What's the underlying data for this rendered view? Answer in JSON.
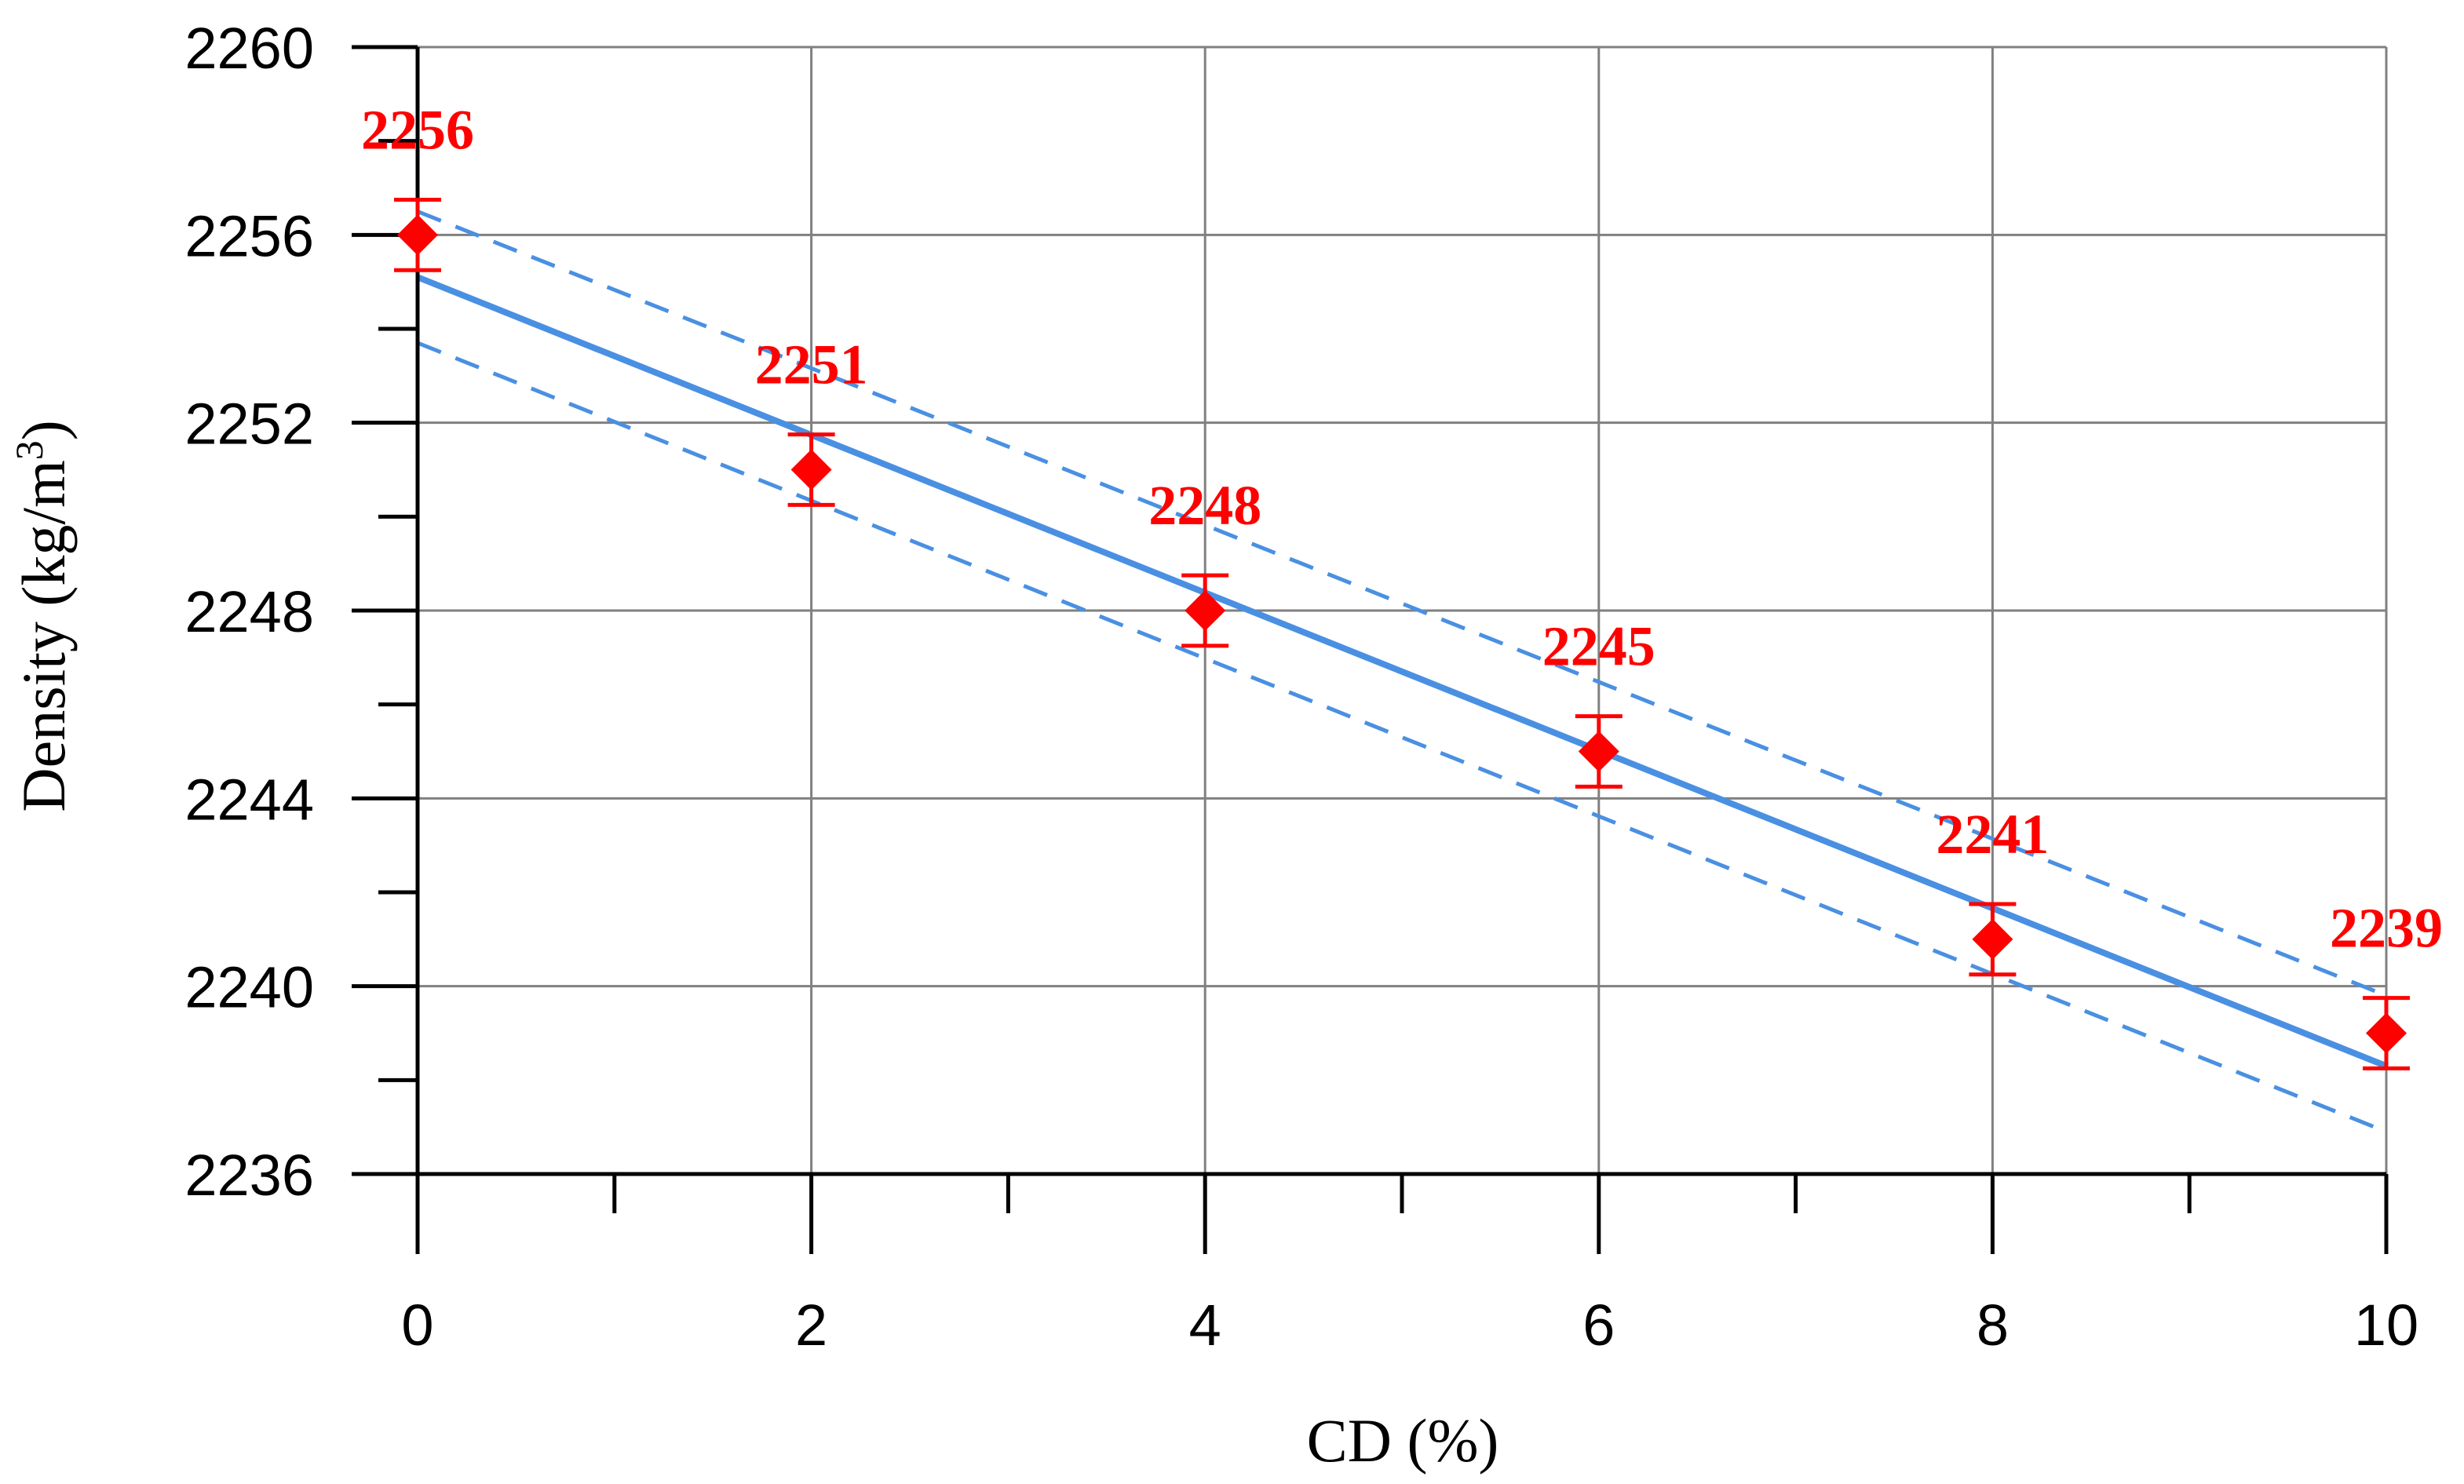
{
  "chart_data": {
    "type": "scatter",
    "xlabel": "CD (%)",
    "ylabel_prefix": "Density (kg/m",
    "ylabel_sup": "3",
    "ylabel_suffix": ")",
    "xlim": [
      0,
      10
    ],
    "ylim": [
      2236,
      2260
    ],
    "x_ticks": [
      0,
      2,
      4,
      6,
      8,
      10
    ],
    "x_minor_ticks": [
      1,
      3,
      5,
      7,
      9
    ],
    "y_ticks": [
      2236,
      2240,
      2244,
      2248,
      2252,
      2256,
      2260
    ],
    "y_minor_ticks": [
      2238,
      2242,
      2246,
      2250,
      2254,
      2258
    ],
    "grid": true,
    "x": [
      0,
      2,
      4,
      6,
      8,
      10
    ],
    "y": [
      2256,
      2251,
      2248,
      2245,
      2241,
      2239
    ],
    "error": [
      0.75,
      0.75,
      0.75,
      0.75,
      0.75,
      0.75
    ],
    "data_labels": [
      "2256",
      "2251",
      "2248",
      "2245",
      "2241",
      "2239"
    ],
    "fit_line": {
      "x": [
        0,
        10
      ],
      "y": [
        2255.1,
        2238.3
      ]
    },
    "confidence_upper": {
      "x": [
        0,
        10
      ],
      "y": [
        2256.5,
        2239.8
      ]
    },
    "confidence_lower": {
      "x": [
        0,
        10
      ],
      "y": [
        2253.7,
        2236.9
      ]
    },
    "colors": {
      "points": "#ff0000",
      "fit": "#4a90e2",
      "grid": "#808080",
      "axis": "#000000"
    }
  }
}
